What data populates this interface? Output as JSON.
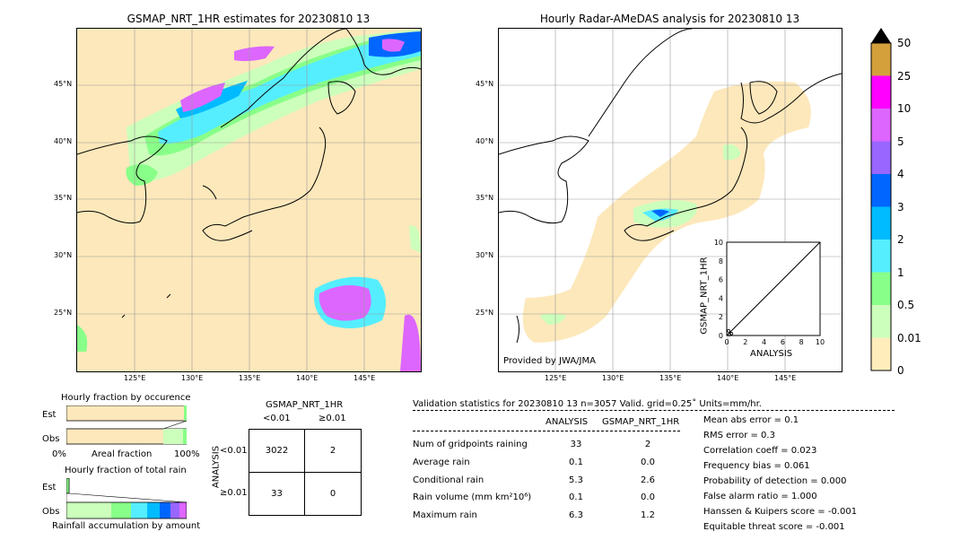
{
  "left_map": {
    "title": "GSMAP_NRT_1HR estimates for 20230810 13",
    "lat_ticks": [
      "45°N",
      "40°N",
      "35°N",
      "30°N",
      "25°N"
    ],
    "lon_ticks": [
      "125°E",
      "130°E",
      "135°E",
      "140°E",
      "145°E"
    ]
  },
  "right_map": {
    "title": "Hourly Radar-AMeDAS analysis for 20230810 13",
    "lat_ticks": [
      "45°N",
      "40°N",
      "35°N",
      "30°N",
      "25°N"
    ],
    "lon_ticks": [
      "125°E",
      "130°E",
      "135°E",
      "140°E",
      "145°E"
    ],
    "credit": "Provided by JWA/JMA"
  },
  "inset": {
    "xlabel": "ANALYSIS",
    "ylabel": "GSMAP_NRT_1HR",
    "ticks": [
      "0",
      "2",
      "4",
      "6",
      "8",
      "10"
    ]
  },
  "colorbar": {
    "labels": [
      "50",
      "25",
      "10",
      "5",
      "4",
      "3",
      "2",
      "1",
      "0.5",
      "0.01",
      "0"
    ],
    "colors": [
      "#d4a03c",
      "#ff00ff",
      "#dd66ff",
      "#9966ff",
      "#0066ff",
      "#00bbff",
      "#55eeff",
      "#88ff88",
      "#ccffbb",
      "#ffeebb"
    ]
  },
  "occurrence": {
    "title": "Hourly fraction by occurence",
    "rows": [
      "Est",
      "Obs"
    ],
    "axis_left": "0%",
    "axis_mid": "Areal fraction",
    "axis_right": "100%"
  },
  "rainfall": {
    "title": "Hourly fraction of total rain",
    "rows": [
      "Est",
      "Obs"
    ],
    "caption": "Rainfall accumulation by amount"
  },
  "contingency": {
    "title": "GSMAP_NRT_1HR",
    "col_labels": [
      "<0.01",
      "≥0.01"
    ],
    "row_title": "ANALYSIS",
    "row_labels": [
      "<0.01",
      "≥0.01"
    ],
    "cells": [
      [
        "3022",
        "2"
      ],
      [
        "33",
        "0"
      ]
    ]
  },
  "validation": {
    "header": "Validation statistics for 20230810 13  n=3057 Valid. grid=0.25˚ Units=mm/hr.",
    "col_analysis": "ANALYSIS",
    "col_gsmap": "GSMAP_NRT_1HR",
    "rows": [
      {
        "label": "Num of gridpoints raining",
        "analysis": "33",
        "gsmap": "2"
      },
      {
        "label": "Average rain",
        "analysis": "0.1",
        "gsmap": "0.0"
      },
      {
        "label": "Conditional rain",
        "analysis": "5.3",
        "gsmap": "2.6"
      },
      {
        "label": "Rain volume (mm km²10⁶)",
        "analysis": "0.1",
        "gsmap": "0.0"
      },
      {
        "label": "Maximum rain",
        "analysis": "6.3",
        "gsmap": "1.2"
      }
    ],
    "scores": [
      "Mean abs error =    0.1",
      "RMS error =    0.3",
      "Correlation coeff =  0.023",
      "Frequency bias =  0.061",
      "Probability of detection =  0.000",
      "False alarm ratio =  1.000",
      "Hanssen & Kuipers score = -0.001",
      "Equitable threat score = -0.001"
    ]
  },
  "chart_data": [
    {
      "type": "heatmap",
      "title": "GSMAP_NRT_1HR estimates for 20230810 13",
      "xlim": [
        120,
        150
      ],
      "ylim": [
        20,
        50
      ],
      "x_ticks": [
        125,
        130,
        135,
        140,
        145
      ],
      "y_ticks": [
        25,
        30,
        35,
        40,
        45
      ]
    },
    {
      "type": "heatmap",
      "title": "Hourly Radar-AMeDAS analysis for 20230810 13",
      "xlim": [
        120,
        150
      ],
      "ylim": [
        20,
        50
      ],
      "x_ticks": [
        125,
        130,
        135,
        140,
        145
      ],
      "y_ticks": [
        25,
        30,
        35,
        40,
        45
      ]
    },
    {
      "type": "scatter",
      "xlabel": "ANALYSIS",
      "ylabel": "GSMAP_NRT_1HR",
      "xlim": [
        0,
        10
      ],
      "ylim": [
        0,
        10
      ],
      "points": [
        [
          0.2,
          0.5
        ],
        [
          0.5,
          0.2
        ],
        [
          0.3,
          0.1
        ]
      ]
    },
    {
      "type": "table",
      "title": "GSMAP_NRT_1HR",
      "cells": [
        [
          3022,
          2
        ],
        [
          33,
          0
        ]
      ]
    }
  ]
}
